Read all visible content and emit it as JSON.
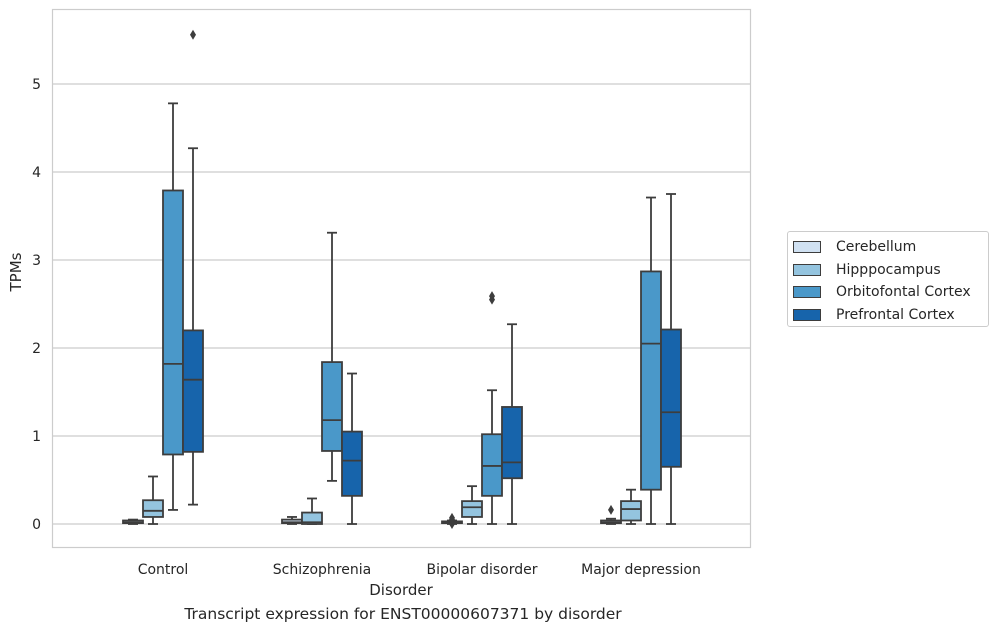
{
  "chart_data": {
    "type": "boxplot",
    "title": "Transcript expression for ENST00000607371 by disorder",
    "xlabel": "Disorder",
    "ylabel": "TPMs",
    "ylim": [
      -0.27,
      5.85
    ],
    "yticks": [
      0,
      1,
      2,
      3,
      4,
      5
    ],
    "grid": "horizontal",
    "legend_position": "right",
    "categories": [
      "Control",
      "Schizophrenia",
      "Bipolar disorder",
      "Major depression"
    ],
    "series": [
      {
        "name": "Cerebellum",
        "color": "#d0e1f2",
        "boxes": [
          {
            "whislo": 0.0,
            "q1": 0.01,
            "med": 0.02,
            "q3": 0.04,
            "whishi": 0.05,
            "fliers": []
          },
          {
            "whislo": 0.0,
            "q1": 0.01,
            "med": 0.02,
            "q3": 0.05,
            "whishi": 0.08,
            "fliers": []
          },
          {
            "whislo": 0.0,
            "q1": 0.01,
            "med": 0.02,
            "q3": 0.03,
            "whishi": 0.04,
            "fliers": [
              0.0,
              0.01,
              0.05,
              0.07
            ]
          },
          {
            "whislo": 0.0,
            "q1": 0.01,
            "med": 0.02,
            "q3": 0.04,
            "whishi": 0.06,
            "fliers": [
              0.16
            ]
          }
        ]
      },
      {
        "name": "Hipppocampus",
        "color": "#94c4df",
        "boxes": [
          {
            "whislo": 0.0,
            "q1": 0.08,
            "med": 0.15,
            "q3": 0.27,
            "whishi": 0.54,
            "fliers": []
          },
          {
            "whislo": 0.0,
            "q1": 0.0,
            "med": 0.02,
            "q3": 0.13,
            "whishi": 0.29,
            "fliers": []
          },
          {
            "whislo": 0.0,
            "q1": 0.08,
            "med": 0.19,
            "q3": 0.26,
            "whishi": 0.43,
            "fliers": []
          },
          {
            "whislo": 0.0,
            "q1": 0.04,
            "med": 0.17,
            "q3": 0.26,
            "whishi": 0.39,
            "fliers": []
          }
        ]
      },
      {
        "name": "Orbitofontal Cortex",
        "color": "#4a98c9",
        "boxes": [
          {
            "whislo": 0.16,
            "q1": 0.79,
            "med": 1.82,
            "q3": 3.79,
            "whishi": 4.78,
            "fliers": []
          },
          {
            "whislo": 0.49,
            "q1": 0.83,
            "med": 1.18,
            "q3": 1.84,
            "whishi": 3.31,
            "fliers": []
          },
          {
            "whislo": 0.0,
            "q1": 0.32,
            "med": 0.66,
            "q3": 1.02,
            "whishi": 1.52,
            "fliers": [
              2.55,
              2.59
            ]
          },
          {
            "whislo": 0.0,
            "q1": 0.39,
            "med": 2.05,
            "q3": 2.87,
            "whishi": 3.71,
            "fliers": []
          }
        ]
      },
      {
        "name": "Prefrontal Cortex",
        "color": "#1764ab",
        "boxes": [
          {
            "whislo": 0.22,
            "q1": 0.82,
            "med": 1.64,
            "q3": 2.2,
            "whishi": 4.27,
            "fliers": [
              5.56
            ]
          },
          {
            "whislo": 0.0,
            "q1": 0.32,
            "med": 0.72,
            "q3": 1.05,
            "whishi": 1.71,
            "fliers": []
          },
          {
            "whislo": 0.0,
            "q1": 0.52,
            "med": 0.7,
            "q3": 1.33,
            "whishi": 2.27,
            "fliers": []
          },
          {
            "whislo": 0.0,
            "q1": 0.65,
            "med": 1.27,
            "q3": 2.21,
            "whishi": 3.75,
            "fliers": []
          }
        ]
      }
    ]
  }
}
